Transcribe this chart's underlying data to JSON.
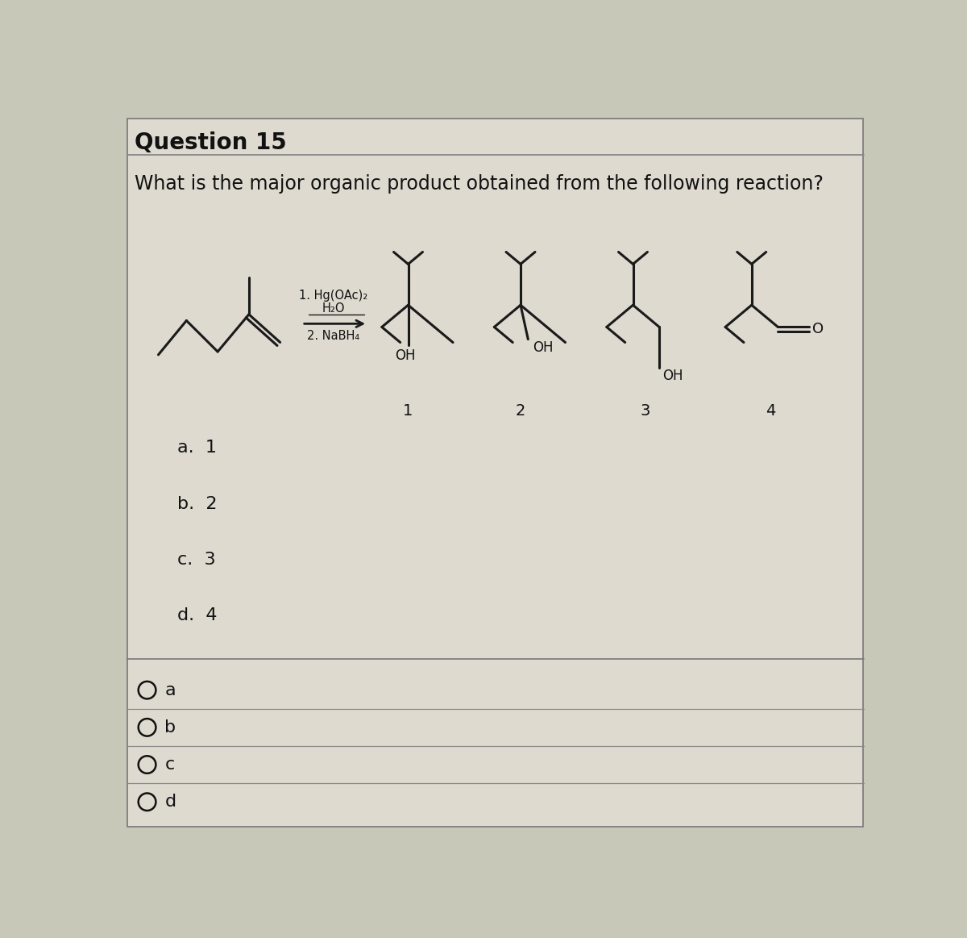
{
  "title": "Question 15",
  "question": "What is the major organic product obtained from the following reaction?",
  "reagent1": "1. Hg(OAc)₂",
  "reagent2": "H₂O",
  "reagent3": "2. NaBH₄",
  "choices": [
    "a.  1",
    "b.  2",
    "c.  3",
    "d.  4"
  ],
  "radio_labels": [
    "a",
    "b",
    "c",
    "d"
  ],
  "bg_color": "#c8c8b8",
  "text_color": "#111111",
  "line_color": "#1a1a1a",
  "title_fontsize": 20,
  "question_fontsize": 17,
  "choice_fontsize": 16,
  "mol_lw": 2.2
}
